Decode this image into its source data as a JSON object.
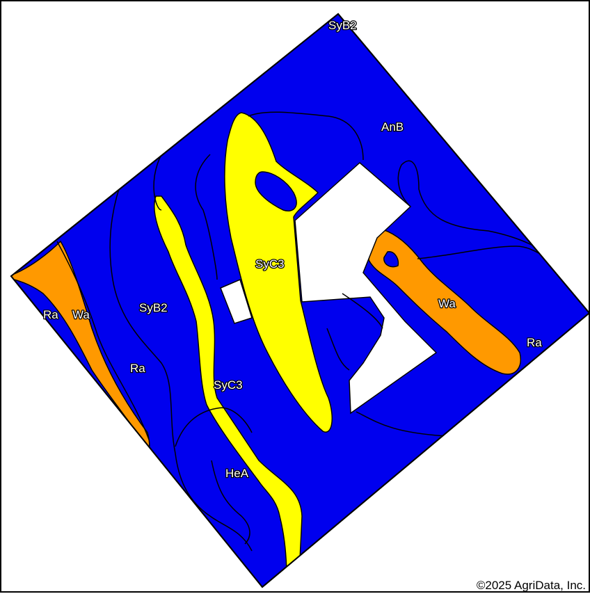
{
  "map": {
    "colors": {
      "blue": "#0000ee",
      "yellow": "#ffff00",
      "orange": "#ff9900",
      "white": "#ffffff",
      "boundary": "#000000"
    },
    "labels": [
      {
        "id": "SyB2-top",
        "text": "SyB2"
      },
      {
        "id": "AnB",
        "text": "AnB"
      },
      {
        "id": "SyC3-upper",
        "text": "SyC3"
      },
      {
        "id": "SyB2-left",
        "text": "SyB2"
      },
      {
        "id": "Ra-left",
        "text": "Ra"
      },
      {
        "id": "Wa-left",
        "text": "Wa"
      },
      {
        "id": "Ra-mid",
        "text": "Ra"
      },
      {
        "id": "SyC3-lower",
        "text": "SyC3"
      },
      {
        "id": "HeA",
        "text": "HeA"
      },
      {
        "id": "Wa-right",
        "text": "Wa"
      },
      {
        "id": "Ra-right",
        "text": "Ra"
      }
    ]
  },
  "copyright": "©2025 AgriData, Inc."
}
